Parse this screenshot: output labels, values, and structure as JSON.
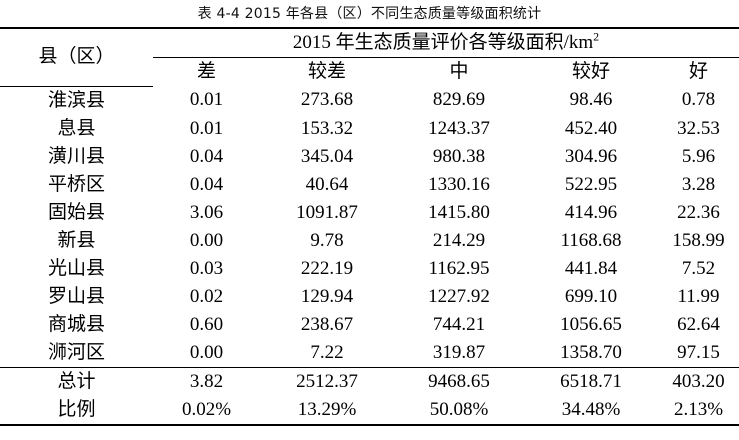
{
  "caption": "表 4-4 2015 年各县（区）不同生态质量等级面积统计",
  "header": {
    "region_label": "县（区）",
    "group_label": "2015 年生态质量评价各等级面积/km",
    "group_unit_sup": "2",
    "grades": [
      "差",
      "较差",
      "中",
      "较好",
      "好"
    ]
  },
  "rows": [
    {
      "name": "淮滨县",
      "values": [
        "0.01",
        "273.68",
        "829.69",
        "98.46",
        "0.78"
      ]
    },
    {
      "name": "息县",
      "values": [
        "0.01",
        "153.32",
        "1243.37",
        "452.40",
        "32.53"
      ]
    },
    {
      "name": "潢川县",
      "values": [
        "0.04",
        "345.04",
        "980.38",
        "304.96",
        "5.96"
      ]
    },
    {
      "name": "平桥区",
      "values": [
        "0.04",
        "40.64",
        "1330.16",
        "522.95",
        "3.28"
      ]
    },
    {
      "name": "固始县",
      "values": [
        "3.06",
        "1091.87",
        "1415.80",
        "414.96",
        "22.36"
      ]
    },
    {
      "name": "新县",
      "values": [
        "0.00",
        "9.78",
        "214.29",
        "1168.68",
        "158.99"
      ]
    },
    {
      "name": "光山县",
      "values": [
        "0.03",
        "222.19",
        "1162.95",
        "441.84",
        "7.52"
      ]
    },
    {
      "name": "罗山县",
      "values": [
        "0.02",
        "129.94",
        "1227.92",
        "699.10",
        "11.99"
      ]
    },
    {
      "name": "商城县",
      "values": [
        "0.60",
        "238.67",
        "744.21",
        "1056.65",
        "62.64"
      ]
    },
    {
      "name": "浉河区",
      "values": [
        "0.00",
        "7.22",
        "319.87",
        "1358.70",
        "97.15"
      ]
    }
  ],
  "summary": [
    {
      "name": "总计",
      "values": [
        "3.82",
        "2512.37",
        "9468.65",
        "6518.71",
        "403.20"
      ]
    },
    {
      "name": "比例",
      "values": [
        "0.02%",
        "13.29%",
        "50.08%",
        "34.48%",
        "2.13%"
      ]
    }
  ]
}
